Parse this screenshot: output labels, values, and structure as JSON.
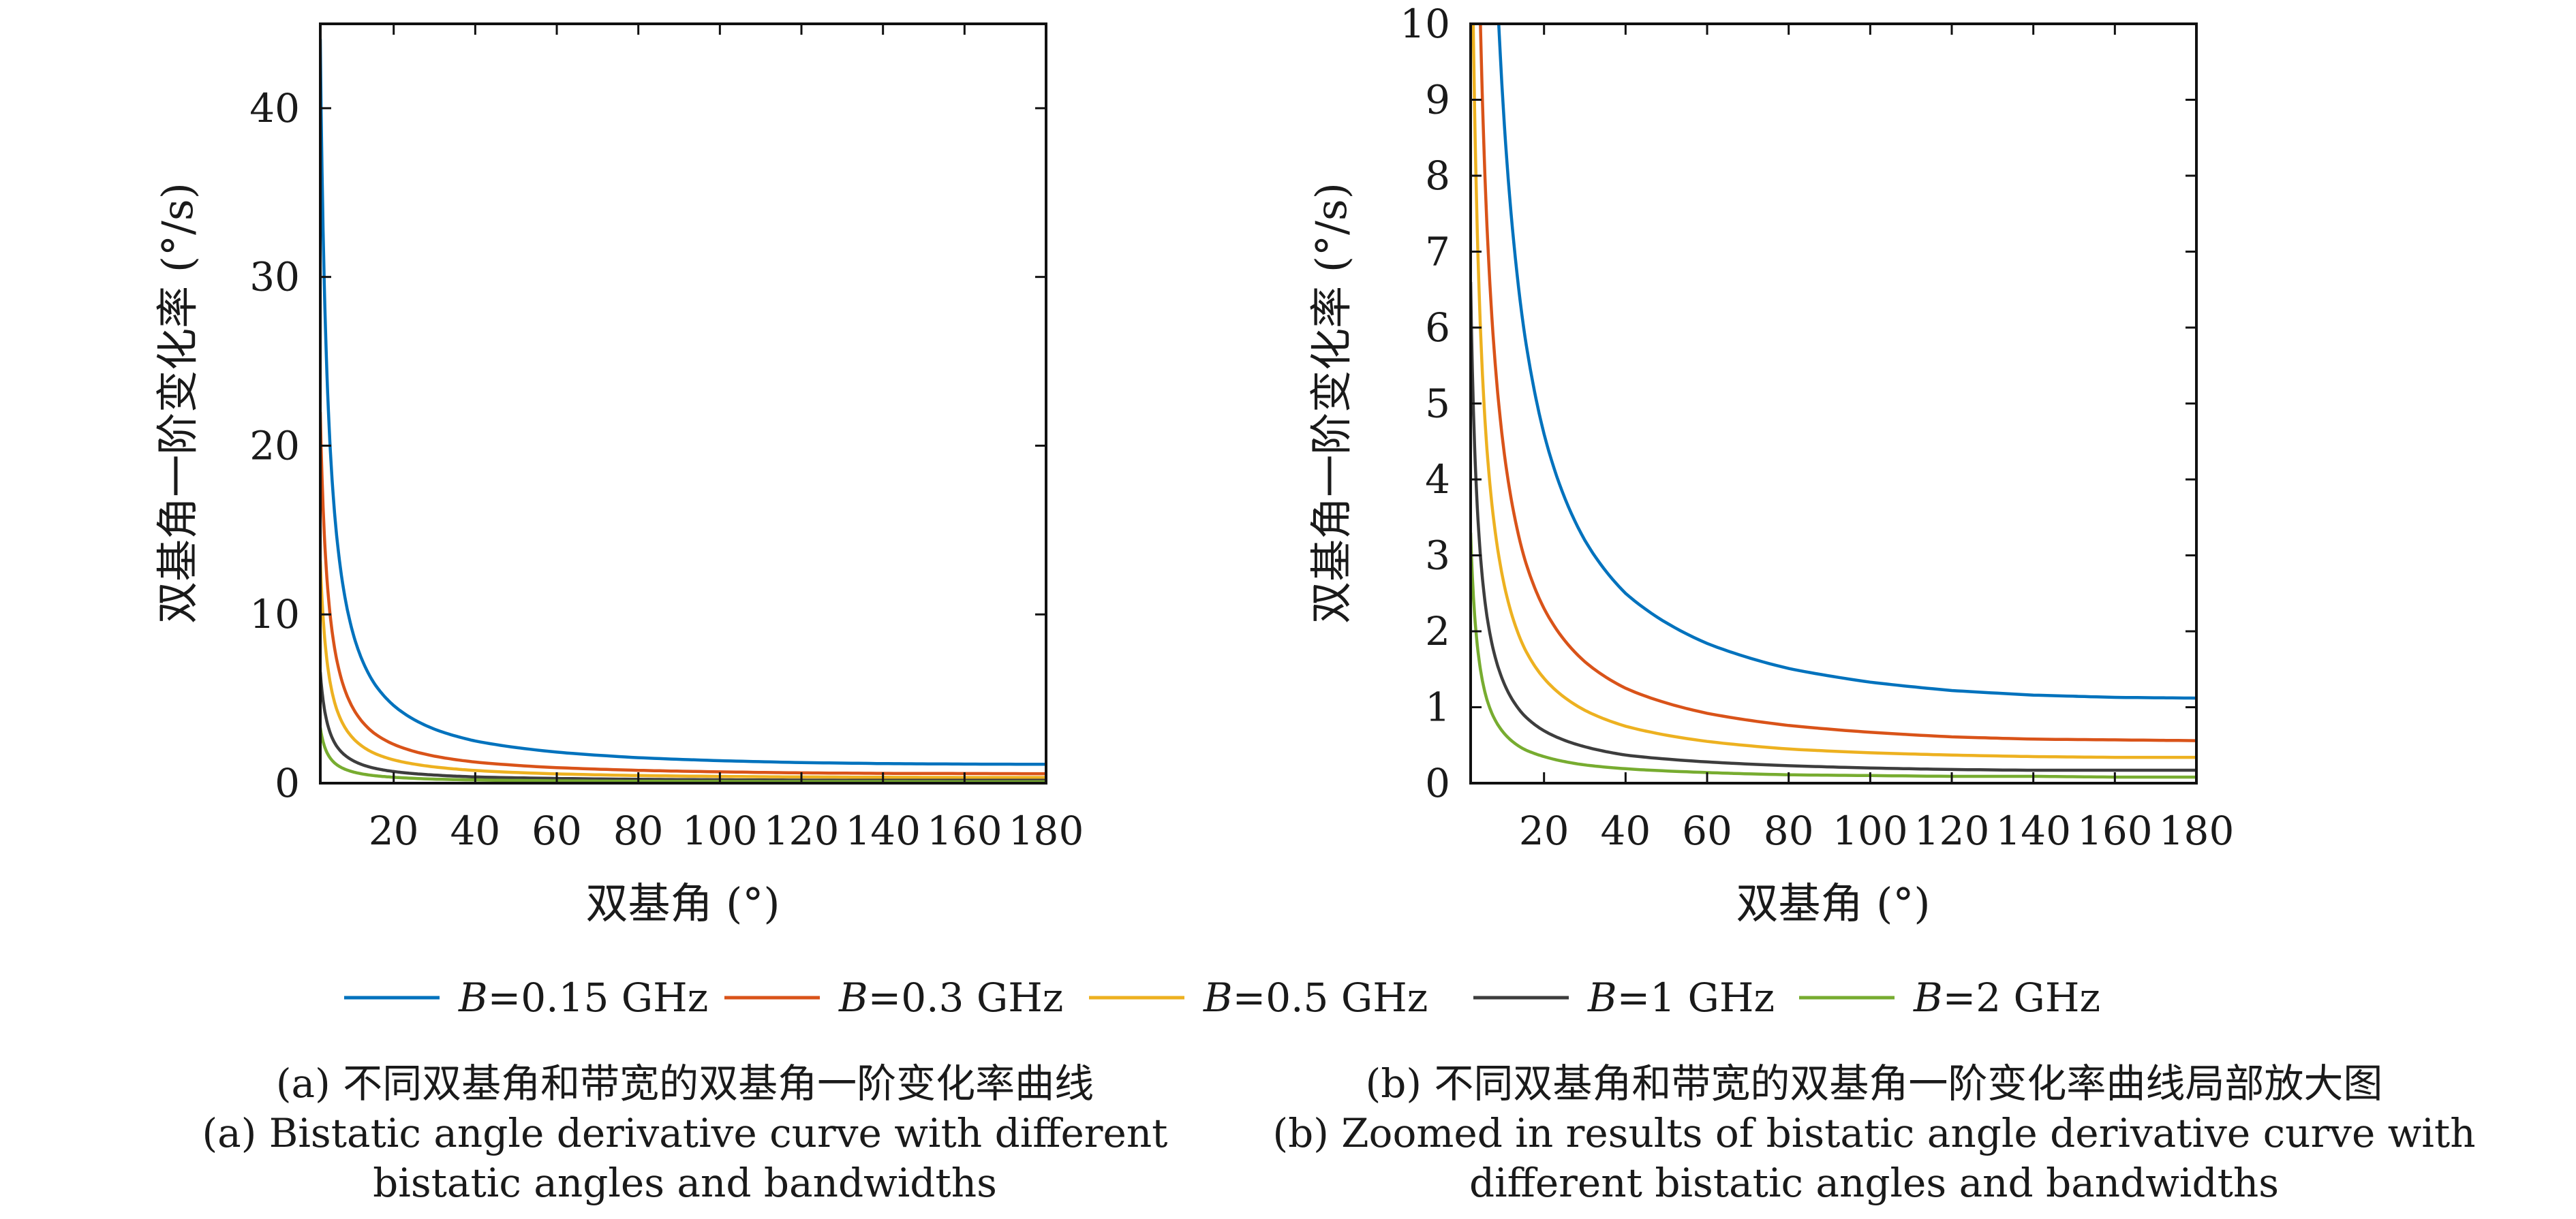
{
  "chart_data": [
    {
      "panel": "a",
      "type": "line",
      "xlabel": "双基角 (°)",
      "ylabel": "双基角一阶变化率 (°/s)",
      "xlim": [
        2,
        180
      ],
      "ylim": [
        0,
        45
      ],
      "xticks": [
        20,
        40,
        60,
        80,
        100,
        120,
        140,
        160,
        180
      ],
      "yticks": [
        0,
        10,
        20,
        30,
        40
      ],
      "grid": false,
      "x": [
        2,
        4,
        6,
        10,
        15,
        20,
        30,
        40,
        60,
        80,
        100,
        120,
        140,
        160,
        180
      ],
      "series": [
        {
          "name_prefix": "B",
          "name_rest": "=0.15 GHz",
          "color": "#0072BD",
          "values": [
            44.1,
            22.0,
            14.7,
            8.9,
            6.0,
            4.6,
            3.2,
            2.5,
            1.84,
            1.51,
            1.33,
            1.22,
            1.16,
            1.13,
            1.12
          ]
        },
        {
          "name_prefix": "B",
          "name_rest": "=0.3 GHz",
          "color": "#D95319",
          "values": [
            22.0,
            11.0,
            7.35,
            4.45,
            3.0,
            2.3,
            1.6,
            1.25,
            0.92,
            0.76,
            0.67,
            0.61,
            0.58,
            0.57,
            0.56
          ]
        },
        {
          "name_prefix": "B",
          "name_rest": "=0.5 GHz",
          "color": "#EDB120",
          "values": [
            13.2,
            6.6,
            4.4,
            2.67,
            1.8,
            1.38,
            0.96,
            0.75,
            0.55,
            0.45,
            0.4,
            0.37,
            0.35,
            0.34,
            0.34
          ]
        },
        {
          "name_prefix": "B",
          "name_rest": "=1 GHz",
          "color": "#3d3d3d",
          "values": [
            6.6,
            3.3,
            2.2,
            1.34,
            0.9,
            0.69,
            0.48,
            0.37,
            0.28,
            0.23,
            0.2,
            0.18,
            0.17,
            0.17,
            0.17
          ]
        },
        {
          "name_prefix": "B",
          "name_rest": "=2 GHz",
          "color": "#77AC30",
          "values": [
            3.3,
            1.65,
            1.1,
            0.67,
            0.45,
            0.35,
            0.24,
            0.19,
            0.14,
            0.11,
            0.1,
            0.09,
            0.09,
            0.08,
            0.08
          ]
        }
      ]
    },
    {
      "panel": "b",
      "type": "line",
      "xlabel": "双基角 (°)",
      "ylabel": "双基角一阶变化率 (°/s)",
      "xlim": [
        2,
        180
      ],
      "ylim": [
        0,
        10
      ],
      "xticks": [
        20,
        40,
        60,
        80,
        100,
        120,
        140,
        160,
        180
      ],
      "yticks": [
        0,
        1,
        2,
        3,
        4,
        5,
        6,
        7,
        8,
        9,
        10
      ],
      "grid": false,
      "clip": true,
      "x": [
        2,
        4,
        6,
        10,
        15,
        20,
        30,
        40,
        60,
        80,
        100,
        120,
        140,
        160,
        180
      ],
      "series_ref": "same as panel a"
    }
  ],
  "legend": {
    "placement": "bottom-center",
    "entries": [
      {
        "prefix": "B",
        "rest": "=0.15 GHz",
        "color": "#0072BD"
      },
      {
        "prefix": "B",
        "rest": "=0.3 GHz",
        "color": "#D95319"
      },
      {
        "prefix": "B",
        "rest": "=0.5 GHz",
        "color": "#EDB120"
      },
      {
        "prefix": "B",
        "rest": "=1 GHz",
        "color": "#3d3d3d"
      },
      {
        "prefix": "B",
        "rest": "=2 GHz",
        "color": "#77AC30"
      }
    ]
  },
  "captions": {
    "a": {
      "cn": "(a) 不同双基角和带宽的双基角一阶变化率曲线",
      "en1": "(a) Bistatic angle derivative curve with different",
      "en2": "bistatic angles and bandwidths"
    },
    "b": {
      "cn": "(b) 不同双基角和带宽的双基角一阶变化率曲线局部放大图",
      "en1": "(b) Zoomed in results of bistatic angle derivative curve with",
      "en2": "different bistatic angles and bandwidths"
    }
  }
}
